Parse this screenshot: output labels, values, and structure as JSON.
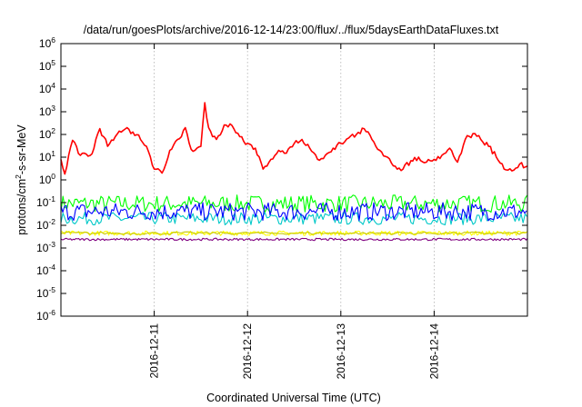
{
  "chart_data": {
    "type": "line",
    "title": "/data/run/goesPlots/archive/2016-12-14/23:00/flux/../flux/5daysEarthDataFluxes.txt",
    "xlabel": "Coordinated Universal Time (UTC)",
    "ylabel": {
      "pre": "protons/cm",
      "sup": "2",
      "post": "-s-sr-MeV"
    },
    "yscale": "log",
    "ylim": [
      1e-06,
      1000000.0
    ],
    "xlim": [
      "2016-12-10 00:00",
      "2016-12-15 00:00"
    ],
    "grid": true,
    "legend": "none",
    "y_ticks": [
      {
        "value": 1e-06,
        "base": "10",
        "exp": "-6"
      },
      {
        "value": 1e-05,
        "base": "10",
        "exp": "-5"
      },
      {
        "value": 0.0001,
        "base": "10",
        "exp": "-4"
      },
      {
        "value": 0.001,
        "base": "10",
        "exp": "-3"
      },
      {
        "value": 0.01,
        "base": "10",
        "exp": "-2"
      },
      {
        "value": 0.1,
        "base": "10",
        "exp": "-1"
      },
      {
        "value": 1,
        "base": "10",
        "exp": "0"
      },
      {
        "value": 10,
        "base": "10",
        "exp": "1"
      },
      {
        "value": 100,
        "base": "10",
        "exp": "2"
      },
      {
        "value": 1000,
        "base": "10",
        "exp": "3"
      },
      {
        "value": 10000,
        "base": "10",
        "exp": "4"
      },
      {
        "value": 100000,
        "base": "10",
        "exp": "5"
      },
      {
        "value": 1000000,
        "base": "10",
        "exp": "6"
      }
    ],
    "x_ticks": [
      "2016-12-11",
      "2016-12-12",
      "2016-12-13",
      "2016-12-14"
    ],
    "series": [
      {
        "color": "#ff0000",
        "x": [
          "2016-12-10 00:00",
          "2016-12-10 01:00",
          "2016-12-10 02:00",
          "2016-12-10 03:00",
          "2016-12-10 04:00",
          "2016-12-10 05:00",
          "2016-12-10 06:00",
          "2016-12-10 08:00",
          "2016-12-10 10:00",
          "2016-12-10 12:00",
          "2016-12-10 14:00",
          "2016-12-10 16:00",
          "2016-12-10 17:00",
          "2016-12-10 18:00",
          "2016-12-10 19:00",
          "2016-12-10 20:00",
          "2016-12-10 22:00",
          "2016-12-11 00:00",
          "2016-12-11 02:00",
          "2016-12-11 03:00",
          "2016-12-11 04:00",
          "2016-12-11 05:00",
          "2016-12-11 06:00",
          "2016-12-11 07:00",
          "2016-12-11 08:00",
          "2016-12-11 09:00",
          "2016-12-11 10:00",
          "2016-12-11 11:00",
          "2016-12-11 12:00",
          "2016-12-11 13:00",
          "2016-12-11 14:00",
          "2016-12-11 15:00",
          "2016-12-11 16:00",
          "2016-12-11 18:00",
          "2016-12-11 20:00",
          "2016-12-11 22:00",
          "2016-12-12 00:00",
          "2016-12-12 02:00",
          "2016-12-12 04:00",
          "2016-12-12 06:00",
          "2016-12-12 08:00",
          "2016-12-12 10:00",
          "2016-12-12 12:00",
          "2016-12-12 14:00",
          "2016-12-12 16:00",
          "2016-12-12 18:00",
          "2016-12-12 20:00",
          "2016-12-12 22:00",
          "2016-12-13 00:00",
          "2016-12-13 02:00",
          "2016-12-13 04:00",
          "2016-12-13 06:00",
          "2016-12-13 08:00",
          "2016-12-13 10:00",
          "2016-12-13 12:00",
          "2016-12-13 14:00",
          "2016-12-13 16:00",
          "2016-12-13 18:00",
          "2016-12-13 20:00",
          "2016-12-13 22:00",
          "2016-12-14 00:00",
          "2016-12-14 02:00",
          "2016-12-14 04:00",
          "2016-12-14 06:00",
          "2016-12-14 08:00",
          "2016-12-14 10:00",
          "2016-12-14 12:00",
          "2016-12-14 14:00",
          "2016-12-14 16:00",
          "2016-12-14 18:00",
          "2016-12-14 20:00",
          "2016-12-14 22:00",
          "2016-12-15 00:00"
        ],
        "values": [
          8,
          1.8,
          12,
          55,
          30,
          12,
          15,
          14,
          180,
          30,
          80,
          150,
          200,
          110,
          90,
          95,
          30,
          3,
          2,
          5,
          20,
          35,
          60,
          80,
          200,
          40,
          18,
          25,
          30,
          2500,
          200,
          80,
          60,
          260,
          250,
          80,
          40,
          25,
          3,
          8,
          20,
          15,
          40,
          60,
          25,
          8,
          12,
          25,
          40,
          70,
          100,
          180,
          60,
          20,
          10,
          4,
          3,
          7,
          10,
          6,
          8,
          12,
          25,
          6,
          60,
          110,
          60,
          30,
          10,
          3,
          2.5,
          5,
          4
        ]
      },
      {
        "color": "#00ff00",
        "x": [
          "2016-12-10 00:00",
          "2016-12-15 00:00"
        ],
        "values": [
          0.09,
          0.09
        ]
      },
      {
        "color": "#00c8c8",
        "x": [
          "2016-12-10 00:00",
          "2016-12-15 00:00"
        ],
        "values": [
          0.02,
          0.02
        ]
      },
      {
        "color": "#0000ff",
        "x": [
          "2016-12-10 00:00",
          "2016-12-15 00:00"
        ],
        "values": [
          0.04,
          0.04
        ]
      },
      {
        "color": "#ffff00",
        "x": [
          "2016-12-10 00:00",
          "2016-12-15 00:00"
        ],
        "values": [
          0.0045,
          0.0045
        ]
      },
      {
        "color": "#c8c800",
        "x": [
          "2016-12-10 00:00",
          "2016-12-15 00:00"
        ],
        "values": [
          0.0045,
          0.0045
        ]
      },
      {
        "color": "#800080",
        "x": [
          "2016-12-10 00:00",
          "2016-12-15 00:00"
        ],
        "values": [
          0.0024,
          0.0024
        ]
      }
    ]
  }
}
